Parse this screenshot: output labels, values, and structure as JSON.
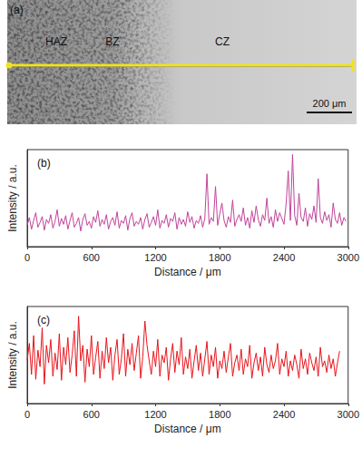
{
  "image_panel": {
    "label": "(a)",
    "regions": [
      "HAZ",
      "BZ",
      "CZ"
    ],
    "scale_bar": "200 μm"
  },
  "chart_data": [
    {
      "type": "line",
      "title": "(b)",
      "xlabel": "Distance / μm",
      "ylabel": "Intensity / a.u.",
      "color": "#c0449a",
      "xlim": [
        0,
        3000
      ],
      "xticks": [
        0,
        600,
        1200,
        1800,
        2400,
        3000
      ],
      "ylim": [
        0,
        100
      ],
      "grid": false,
      "tick_labels": "x",
      "x": [
        0,
        20,
        40,
        60,
        80,
        100,
        120,
        140,
        160,
        180,
        200,
        220,
        240,
        260,
        280,
        300,
        320,
        340,
        360,
        380,
        400,
        420,
        440,
        460,
        480,
        500,
        520,
        540,
        560,
        580,
        600,
        620,
        640,
        660,
        680,
        700,
        720,
        740,
        760,
        780,
        800,
        820,
        840,
        860,
        880,
        900,
        920,
        940,
        960,
        980,
        1000,
        1020,
        1040,
        1060,
        1080,
        1100,
        1120,
        1140,
        1160,
        1180,
        1200,
        1220,
        1240,
        1260,
        1280,
        1300,
        1320,
        1340,
        1360,
        1380,
        1400,
        1420,
        1440,
        1460,
        1480,
        1500,
        1520,
        1540,
        1560,
        1580,
        1600,
        1620,
        1640,
        1660,
        1680,
        1700,
        1720,
        1740,
        1760,
        1780,
        1800,
        1820,
        1840,
        1860,
        1880,
        1900,
        1920,
        1940,
        1960,
        1980,
        2000,
        2020,
        2040,
        2060,
        2080,
        2100,
        2120,
        2140,
        2160,
        2180,
        2200,
        2220,
        2240,
        2260,
        2280,
        2300,
        2320,
        2340,
        2360,
        2380,
        2400,
        2420,
        2440,
        2460,
        2480,
        2500,
        2520,
        2540,
        2560,
        2580,
        2600,
        2620,
        2640,
        2660,
        2680,
        2700,
        2720,
        2740,
        2760,
        2780,
        2800,
        2820,
        2840,
        2860,
        2880,
        2900,
        2920,
        2940,
        2960,
        2980
      ],
      "values": [
        22,
        30,
        18,
        27,
        35,
        20,
        25,
        31,
        17,
        28,
        24,
        33,
        19,
        26,
        38,
        21,
        29,
        23,
        32,
        18,
        27,
        35,
        20,
        24,
        30,
        16,
        28,
        34,
        22,
        26,
        19,
        31,
        25,
        37,
        21,
        28,
        23,
        33,
        18,
        26,
        30,
        22,
        36,
        19,
        27,
        24,
        32,
        17,
        29,
        35,
        21,
        26,
        23,
        30,
        18,
        28,
        34,
        20,
        25,
        31,
        22,
        38,
        19,
        27,
        24,
        33,
        20,
        29,
        26,
        35,
        18,
        30,
        23,
        28,
        21,
        36,
        25,
        31,
        19,
        27,
        24,
        32,
        20,
        29,
        75,
        23,
        30,
        26,
        62,
        22,
        34,
        45,
        27,
        20,
        31,
        25,
        48,
        21,
        28,
        33,
        26,
        40,
        22,
        30,
        19,
        37,
        25,
        42,
        28,
        21,
        33,
        27,
        50,
        24,
        31,
        20,
        38,
        26,
        35,
        29,
        23,
        44,
        78,
        27,
        95,
        32,
        22,
        55,
        30,
        26,
        40,
        21,
        34,
        28,
        42,
        25,
        70,
        30,
        24,
        36,
        27,
        33,
        20,
        45,
        28,
        24,
        35,
        22,
        30,
        26
      ]
    },
    {
      "type": "line",
      "title": "(c)",
      "xlabel": "Distance / μm",
      "ylabel": "Intensity / a.u.",
      "color": "#e8141b",
      "xlim": [
        0,
        3000
      ],
      "xticks": [
        0,
        600,
        1200,
        1800,
        2400,
        3000
      ],
      "ylim": [
        0,
        100
      ],
      "grid": false,
      "tick_labels": "x",
      "x": [
        0,
        20,
        40,
        60,
        80,
        100,
        120,
        140,
        160,
        180,
        200,
        220,
        240,
        260,
        280,
        300,
        320,
        340,
        360,
        380,
        400,
        420,
        440,
        460,
        480,
        500,
        520,
        540,
        560,
        580,
        600,
        620,
        640,
        660,
        680,
        700,
        720,
        740,
        760,
        780,
        800,
        820,
        840,
        860,
        880,
        900,
        920,
        940,
        960,
        980,
        1000,
        1020,
        1040,
        1060,
        1080,
        1100,
        1120,
        1140,
        1160,
        1180,
        1200,
        1220,
        1240,
        1260,
        1280,
        1300,
        1320,
        1340,
        1360,
        1380,
        1400,
        1420,
        1440,
        1460,
        1480,
        1500,
        1520,
        1540,
        1560,
        1580,
        1600,
        1620,
        1640,
        1660,
        1680,
        1700,
        1720,
        1740,
        1760,
        1780,
        1800,
        1820,
        1840,
        1860,
        1880,
        1900,
        1920,
        1940,
        1960,
        1980,
        2000,
        2020,
        2040,
        2060,
        2080,
        2100,
        2120,
        2140,
        2160,
        2180,
        2200,
        2220,
        2240,
        2260,
        2280,
        2300,
        2320,
        2340,
        2360,
        2380,
        2400,
        2420,
        2440,
        2460,
        2480,
        2500,
        2520,
        2540,
        2560,
        2580,
        2600,
        2620,
        2640,
        2660,
        2680,
        2700,
        2720,
        2740,
        2760,
        2780,
        2800,
        2820,
        2840,
        2860,
        2880,
        2900,
        2920
      ],
      "values": [
        45,
        62,
        30,
        70,
        25,
        55,
        38,
        78,
        20,
        60,
        42,
        66,
        28,
        52,
        35,
        72,
        24,
        58,
        40,
        68,
        32,
        50,
        75,
        28,
        90,
        44,
        60,
        22,
        56,
        38,
        70,
        30,
        48,
        64,
        26,
        54,
        36,
        68,
        42,
        58,
        24,
        50,
        66,
        30,
        46,
        72,
        28,
        56,
        40,
        62,
        34,
        52,
        70,
        26,
        48,
        85,
        60,
        44,
        30,
        54,
        38,
        66,
        28,
        50,
        42,
        58,
        24,
        46,
        62,
        32,
        54,
        40,
        68,
        30,
        48,
        36,
        56,
        26,
        44,
        60,
        34,
        52,
        28,
        46,
        64,
        30,
        50,
        38,
        58,
        26,
        44,
        36,
        54,
        32,
        48,
        62,
        28,
        42,
        50,
        34,
        56,
        30,
        46,
        38,
        60,
        26,
        42,
        52,
        34,
        48,
        28,
        58,
        40,
        32,
        50,
        36,
        44,
        62,
        30,
        46,
        38,
        54,
        28,
        44,
        34,
        50,
        40,
        26,
        56,
        36,
        46,
        30,
        52,
        42,
        34,
        48,
        28,
        58,
        38,
        44,
        32,
        50,
        36,
        46,
        28,
        42,
        54
      ]
    }
  ]
}
